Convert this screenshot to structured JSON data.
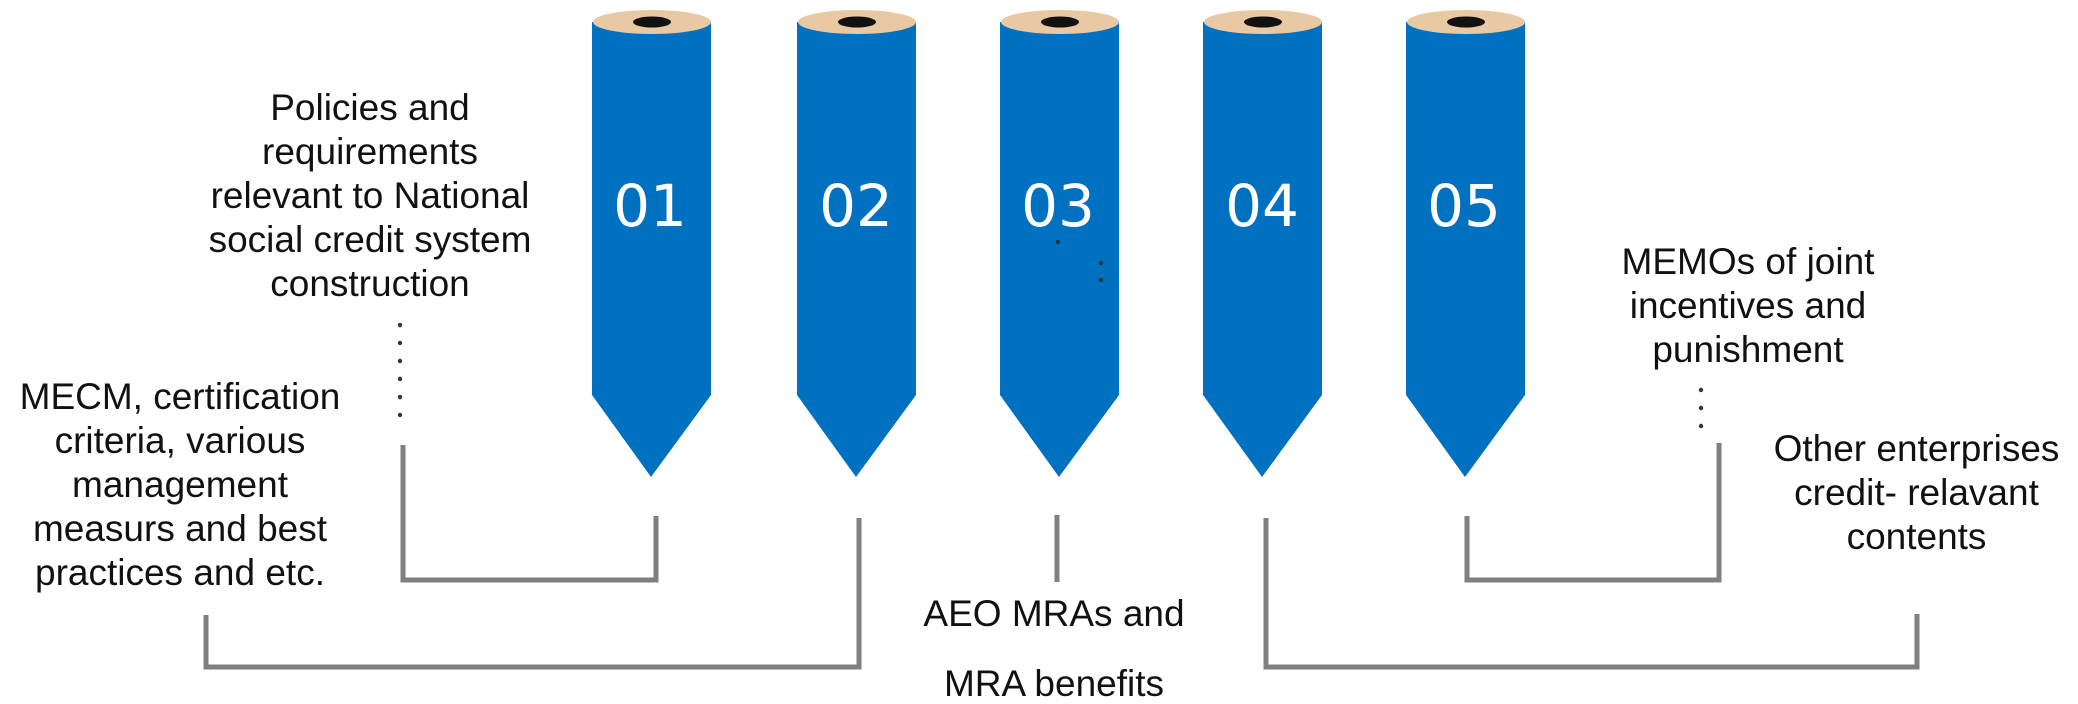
{
  "colors": {
    "pencil_body": "#0070c0",
    "pencil_cap": "#e8c9a3",
    "pencil_hole": "#111111",
    "connector": "#7f7f7f",
    "dots": "#333333",
    "number_text": "#ffffff"
  },
  "pencils": [
    {
      "number": "01"
    },
    {
      "number": "02"
    },
    {
      "number": "03"
    },
    {
      "number": "04"
    },
    {
      "number": "05"
    }
  ],
  "labels": {
    "policies": "Policies and\nrequirements\nrelevant to National\nsocial credit system\nconstruction",
    "mecm": "MECM, certification\ncriteria, various\nmanagement\nmeasurs and best\npractices and etc.",
    "aeo": "AEO MRAs and\n\nMRA benefits",
    "memos": "MEMOs of joint\nincentives and\npunishment",
    "other": "Other enterprises\ncredit- relavant\ncontents"
  }
}
